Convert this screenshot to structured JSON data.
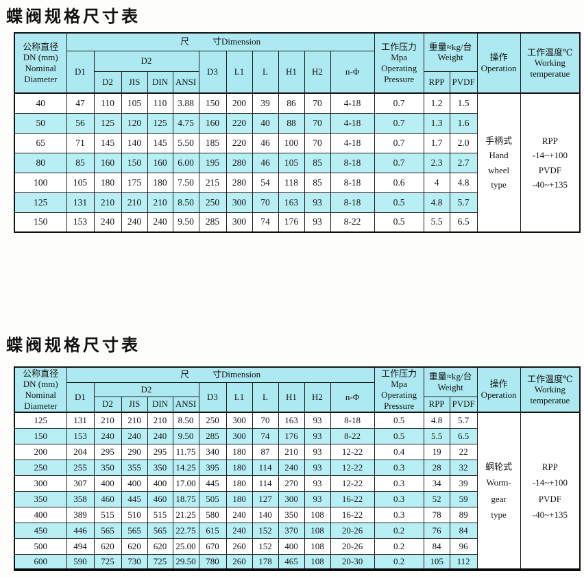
{
  "colors": {
    "header_bg": "#ace9f0",
    "row_alt_bg": "#b7eff4",
    "border": "#1c1c1c",
    "page_bg": "#fdfdfb"
  },
  "tables": [
    {
      "title": "蝶阀规格尺寸表",
      "header": {
        "nominal_diameter": "公称直径\nDN (mm)\nNominal\nDiameter",
        "dim_left": "尺",
        "dim_right": "寸Dimension",
        "d1": "D1",
        "d2_group": "D2",
        "d2_sub_1": "D2",
        "d2_sub_2": "JIS",
        "d2_sub_3": "DIN",
        "d2_sub_4": "ANSI",
        "d3": "D3",
        "l1": "L1",
        "l": "L",
        "h1": "H1",
        "h2": "H2",
        "n_phi": "n-Φ",
        "pressure": "工作压力\nMpa\nOperating\nPressure",
        "weight": "重量≈kg/台\nWeight",
        "rpp": "RPP",
        "pvdf": "PVDF",
        "operation": "操作\nOperation",
        "temperature": "工作温度℃\nWorking\ntemperatue"
      },
      "columns": [
        "DN",
        "D1",
        "D2",
        "JIS",
        "DIN",
        "ANSI",
        "D3",
        "L1",
        "L",
        "H1",
        "H2",
        "n-Φ",
        "Operating Pressure Mpa",
        "Weight RPP",
        "Weight PVDF"
      ],
      "rows": [
        [
          "40",
          "47",
          "110",
          "105",
          "110",
          "3.88",
          "150",
          "200",
          "39",
          "86",
          "70",
          "4-18",
          "0.7",
          "1.2",
          "1.5"
        ],
        [
          "50",
          "56",
          "125",
          "120",
          "125",
          "4.75",
          "160",
          "220",
          "40",
          "88",
          "70",
          "4-18",
          "0.7",
          "1.3",
          "1.6"
        ],
        [
          "65",
          "71",
          "145",
          "140",
          "145",
          "5.50",
          "185",
          "220",
          "46",
          "100",
          "70",
          "4-18",
          "0.7",
          "1.7",
          "2.0"
        ],
        [
          "80",
          "85",
          "160",
          "150",
          "160",
          "6.00",
          "195",
          "280",
          "46",
          "105",
          "85",
          "8-18",
          "0.7",
          "2.3",
          "2.7"
        ],
        [
          "100",
          "105",
          "180",
          "175",
          "180",
          "7.50",
          "215",
          "280",
          "54",
          "118",
          "85",
          "8-18",
          "0.6",
          "4",
          "4.8"
        ],
        [
          "125",
          "131",
          "210",
          "210",
          "210",
          "8.50",
          "250",
          "300",
          "70",
          "163",
          "93",
          "8-18",
          "0.5",
          "4.8",
          "5.7"
        ],
        [
          "150",
          "153",
          "240",
          "240",
          "240",
          "9.50",
          "285",
          "300",
          "74",
          "176",
          "93",
          "8-22",
          "0.5",
          "5.5",
          "6.5"
        ]
      ],
      "operation_cell": "手柄式\nHand\nwheel\ntype",
      "temperature_cell": "RPP\n-14~+100\nPVDF\n-40~+135"
    },
    {
      "title": "蝶阀规格尺寸表",
      "header": {
        "nominal_diameter": "公称直径\nDN (mm)\nNominal\nDiameter",
        "dim_left": "尺",
        "dim_right": "寸Dimension",
        "d1": "D1",
        "d2_group": "D2",
        "d2_sub_1": "D2",
        "d2_sub_2": "JIS",
        "d2_sub_3": "DIN",
        "d2_sub_4": "ANSI",
        "d3": "D3",
        "l1": "L1",
        "l": "L",
        "h1": "H1",
        "h2": "H2",
        "n_phi": "n-Φ",
        "pressure": "工作压力\nMpa\nOperating\nPressure",
        "weight": "重量≈kg/台\nWeight",
        "rpp": "RPP",
        "pvdf": "PVDF",
        "operation": "操作\nOperation",
        "temperature": "工作温度℃\nWorking\ntemperatue"
      },
      "columns": [
        "DN",
        "D1",
        "D2",
        "JIS",
        "DIN",
        "ANSI",
        "D3",
        "L1",
        "L",
        "H1",
        "H2",
        "n-Φ",
        "Operating Pressure Mpa",
        "Weight RPP",
        "Weight PVDF"
      ],
      "rows": [
        [
          "125",
          "131",
          "210",
          "210",
          "210",
          "8.50",
          "250",
          "300",
          "70",
          "163",
          "93",
          "8-18",
          "0.5",
          "4.8",
          "5.7"
        ],
        [
          "150",
          "153",
          "240",
          "240",
          "240",
          "9.50",
          "285",
          "300",
          "74",
          "176",
          "93",
          "8-22",
          "0.5",
          "5.5",
          "6.5"
        ],
        [
          "200",
          "204",
          "295",
          "290",
          "295",
          "11.75",
          "340",
          "180",
          "87",
          "210",
          "93",
          "12-22",
          "0.4",
          "19",
          "22"
        ],
        [
          "250",
          "255",
          "350",
          "355",
          "350",
          "14.25",
          "395",
          "180",
          "114",
          "240",
          "93",
          "12-22",
          "0.3",
          "28",
          "32"
        ],
        [
          "300",
          "307",
          "400",
          "400",
          "400",
          "17.00",
          "445",
          "180",
          "114",
          "270",
          "93",
          "12-22",
          "0.3",
          "34",
          "39"
        ],
        [
          "350",
          "358",
          "460",
          "445",
          "460",
          "18.75",
          "505",
          "180",
          "127",
          "300",
          "93",
          "16-22",
          "0.3",
          "52",
          "59"
        ],
        [
          "400",
          "389",
          "515",
          "510",
          "515",
          "21.25",
          "580",
          "240",
          "140",
          "350",
          "108",
          "16-22",
          "0.3",
          "78",
          "89"
        ],
        [
          "450",
          "446",
          "565",
          "565",
          "565",
          "22.75",
          "615",
          "240",
          "152",
          "370",
          "108",
          "20-26",
          "0.2",
          "76",
          "84"
        ],
        [
          "500",
          "494",
          "620",
          "620",
          "620",
          "25.00",
          "670",
          "260",
          "152",
          "400",
          "108",
          "20-26",
          "0.2",
          "84",
          "96"
        ],
        [
          "600",
          "590",
          "725",
          "730",
          "725",
          "29.50",
          "780",
          "260",
          "178",
          "465",
          "108",
          "20-30",
          "0.2",
          "105",
          "112"
        ]
      ],
      "operation_cell": "蜗轮式\nWorm-\ngear\ntype",
      "temperature_cell": "RPP\n-14~+100\nPVDF\n-40~+135"
    }
  ]
}
